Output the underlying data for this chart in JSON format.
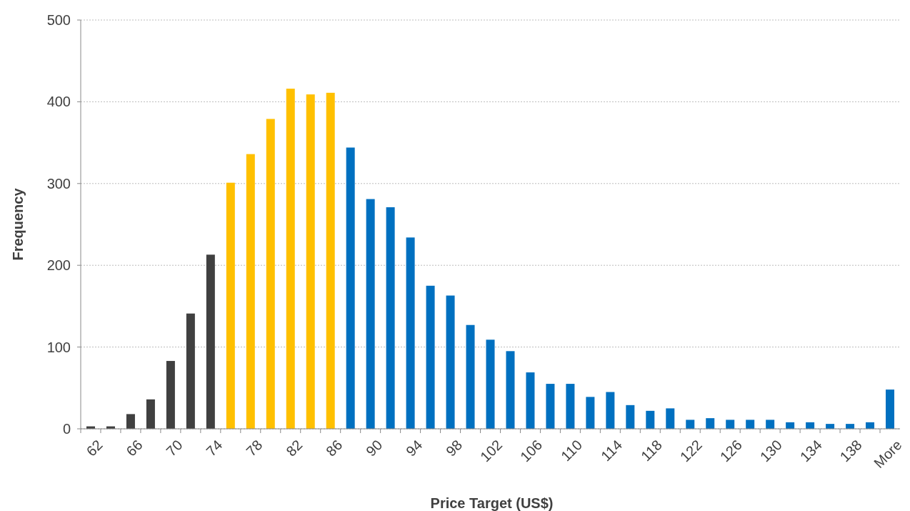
{
  "chart_data": {
    "type": "bar",
    "xlabel": "Price Target (US$)",
    "ylabel": "Frequency",
    "categories": [
      "62",
      null,
      "66",
      null,
      "70",
      null,
      "74",
      null,
      "78",
      null,
      "82",
      null,
      "86",
      null,
      "90",
      null,
      "94",
      null,
      "98",
      null,
      "102",
      null,
      "106",
      null,
      "110",
      null,
      "114",
      null,
      "118",
      null,
      "122",
      null,
      "126",
      null,
      "130",
      null,
      "134",
      null,
      "138",
      null,
      "More"
    ],
    "values": [
      3,
      3,
      18,
      36,
      83,
      141,
      213,
      301,
      336,
      379,
      416,
      409,
      411,
      344,
      281,
      271,
      234,
      175,
      163,
      127,
      109,
      95,
      69,
      55,
      55,
      39,
      45,
      29,
      22,
      25,
      11,
      13,
      11,
      11,
      11,
      8,
      8,
      6,
      6,
      8,
      48
    ],
    "colors": [
      "#404040",
      "#404040",
      "#404040",
      "#404040",
      "#404040",
      "#404040",
      "#404040",
      "#ffc000",
      "#ffc000",
      "#ffc000",
      "#ffc000",
      "#ffc000",
      "#ffc000",
      "#0070c0",
      "#0070c0",
      "#0070c0",
      "#0070c0",
      "#0070c0",
      "#0070c0",
      "#0070c0",
      "#0070c0",
      "#0070c0",
      "#0070c0",
      "#0070c0",
      "#0070c0",
      "#0070c0",
      "#0070c0",
      "#0070c0",
      "#0070c0",
      "#0070c0",
      "#0070c0",
      "#0070c0",
      "#0070c0",
      "#0070c0",
      "#0070c0",
      "#0070c0",
      "#0070c0",
      "#0070c0",
      "#0070c0",
      "#0070c0",
      "#0070c0"
    ],
    "ylim": [
      0,
      500
    ],
    "yticks": [
      0,
      100,
      200,
      300,
      400,
      500
    ],
    "grid": "y"
  }
}
